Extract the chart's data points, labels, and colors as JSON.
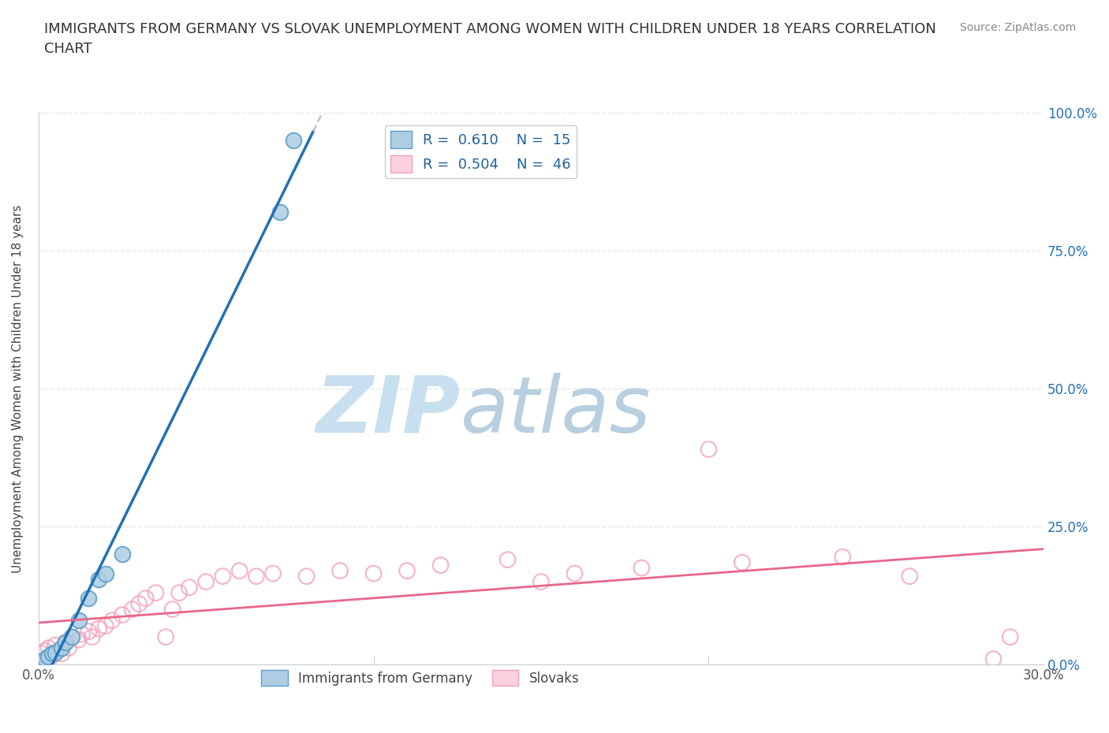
{
  "title": "IMMIGRANTS FROM GERMANY VS SLOVAK UNEMPLOYMENT AMONG WOMEN WITH CHILDREN UNDER 18 YEARS CORRELATION\nCHART",
  "source": "Source: ZipAtlas.com",
  "ylabel": "Unemployment Among Women with Children Under 18 years",
  "xlim": [
    0.0,
    0.3
  ],
  "ylim": [
    0.0,
    1.0
  ],
  "xticks": [
    0.0,
    0.05,
    0.1,
    0.15,
    0.2,
    0.25,
    0.3
  ],
  "xtick_labels": [
    "0.0%",
    "",
    "",
    "",
    "",
    "",
    "30.0%"
  ],
  "ytick_labels": [
    "0.0%",
    "25.0%",
    "50.0%",
    "75.0%",
    "100.0%"
  ],
  "yticks": [
    0.0,
    0.25,
    0.5,
    0.75,
    1.0
  ],
  "blue_R": 0.61,
  "blue_N": 15,
  "pink_R": 0.504,
  "pink_N": 46,
  "blue_fill_color": "#aecde3",
  "blue_edge_color": "#5a9fc9",
  "blue_line_color": "#2171b5",
  "blue_dashed_color": "#b0c8dc",
  "pink_fill_color": "none",
  "pink_edge_color": "#f4a0b8",
  "pink_line_color": "#e8688a",
  "blue_scatter_x": [
    0.001,
    0.002,
    0.003,
    0.004,
    0.005,
    0.007,
    0.008,
    0.01,
    0.012,
    0.015,
    0.018,
    0.02,
    0.025,
    0.072,
    0.076
  ],
  "blue_scatter_y": [
    0.005,
    0.01,
    0.015,
    0.02,
    0.022,
    0.03,
    0.04,
    0.05,
    0.08,
    0.12,
    0.155,
    0.165,
    0.2,
    0.82,
    0.95
  ],
  "pink_scatter_x": [
    0.001,
    0.002,
    0.003,
    0.004,
    0.005,
    0.006,
    0.007,
    0.008,
    0.009,
    0.01,
    0.012,
    0.013,
    0.015,
    0.016,
    0.018,
    0.02,
    0.022,
    0.025,
    0.028,
    0.03,
    0.032,
    0.035,
    0.038,
    0.04,
    0.042,
    0.045,
    0.05,
    0.055,
    0.06,
    0.065,
    0.07,
    0.08,
    0.09,
    0.1,
    0.11,
    0.12,
    0.14,
    0.15,
    0.16,
    0.18,
    0.2,
    0.21,
    0.24,
    0.26,
    0.285,
    0.29
  ],
  "pink_scatter_y": [
    0.02,
    0.025,
    0.03,
    0.015,
    0.035,
    0.025,
    0.02,
    0.04,
    0.03,
    0.05,
    0.045,
    0.055,
    0.06,
    0.05,
    0.065,
    0.07,
    0.08,
    0.09,
    0.1,
    0.11,
    0.12,
    0.13,
    0.05,
    0.1,
    0.13,
    0.14,
    0.15,
    0.16,
    0.17,
    0.16,
    0.165,
    0.16,
    0.17,
    0.165,
    0.17,
    0.18,
    0.19,
    0.15,
    0.165,
    0.175,
    0.39,
    0.185,
    0.195,
    0.16,
    0.01,
    0.05
  ],
  "watermark_zip": "ZIP",
  "watermark_atlas": "atlas",
  "watermark_color_zip": "#c8dff0",
  "watermark_color_atlas": "#b8cfe0",
  "background_color": "#ffffff",
  "grid_color": "#e0e0e0"
}
